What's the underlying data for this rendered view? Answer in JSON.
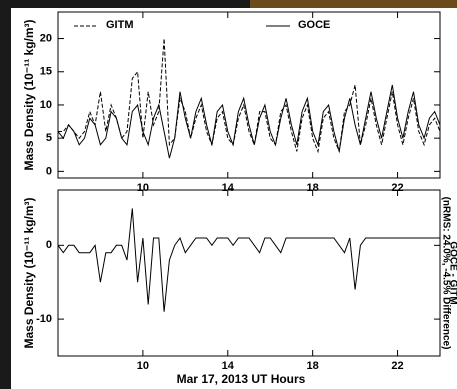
{
  "chart_data": [
    {
      "type": "line",
      "ylabel": "Mass Density (10⁻¹¹ kg/m³)",
      "x": [
        6,
        6.25,
        6.5,
        6.75,
        7,
        7.25,
        7.5,
        7.75,
        8,
        8.25,
        8.5,
        8.75,
        9,
        9.25,
        9.5,
        9.75,
        10,
        10.25,
        10.5,
        10.75,
        11,
        11.25,
        11.5,
        11.75,
        12,
        12.25,
        12.5,
        12.75,
        13,
        13.25,
        13.5,
        13.75,
        14,
        14.25,
        14.5,
        14.75,
        15,
        15.25,
        15.5,
        15.75,
        16,
        16.25,
        16.5,
        16.75,
        17,
        17.25,
        17.5,
        17.75,
        18,
        18.25,
        18.5,
        18.75,
        19,
        19.25,
        19.5,
        19.75,
        20,
        20.25,
        20.5,
        20.75,
        21,
        21.25,
        21.5,
        21.75,
        22,
        22.25,
        22.5,
        22.75,
        23,
        23.25,
        23.5,
        23.75,
        24
      ],
      "series": [
        {
          "name": "GITM",
          "color": "#000000",
          "line_style": "dashed",
          "values": [
            6,
            6,
            7,
            6,
            5,
            6,
            9,
            7,
            12,
            6,
            10,
            8,
            5,
            6,
            14,
            15,
            5,
            12,
            7,
            9,
            20,
            4,
            5,
            11,
            9,
            5,
            8,
            10,
            6,
            4,
            8,
            9,
            5,
            4,
            8,
            10,
            6,
            4,
            9,
            9,
            5,
            4,
            9,
            10,
            6,
            3,
            8,
            10,
            5,
            3,
            8,
            9,
            5,
            3,
            9,
            10,
            13,
            4,
            7,
            11,
            7,
            4,
            8,
            12,
            7,
            4,
            8,
            11,
            6,
            4,
            7,
            8,
            6
          ]
        },
        {
          "name": "GOCE",
          "color": "#000000",
          "line_style": "solid",
          "values": [
            6,
            5,
            7,
            6,
            4,
            5,
            8,
            7,
            4,
            5,
            9,
            8,
            5,
            4,
            9,
            10,
            6,
            4,
            8,
            10,
            6,
            2,
            5,
            12,
            8,
            5,
            9,
            11,
            7,
            4,
            9,
            10,
            6,
            4,
            9,
            11,
            7,
            4,
            8,
            10,
            6,
            4,
            8,
            11,
            7,
            4,
            9,
            11,
            6,
            4,
            9,
            10,
            6,
            3,
            8,
            11,
            7,
            4,
            8,
            12,
            8,
            5,
            9,
            13,
            8,
            5,
            9,
            12,
            7,
            5,
            8,
            9,
            7
          ]
        }
      ],
      "xlim": [
        6,
        24
      ],
      "xticks": [
        10,
        14,
        18,
        22
      ],
      "ylim": [
        -1,
        24
      ],
      "yticks": [
        0,
        5,
        10,
        15,
        20
      ]
    },
    {
      "type": "line",
      "ylabel": "Mass Density (10⁻¹¹ kg/m³)",
      "xlabel": "Mar 17, 2013 UT Hours",
      "right_labels": [
        "GOCE - GITM",
        "(nRMS: 24.0%, -4.5% Difference)"
      ],
      "x": [
        6,
        6.25,
        6.5,
        6.75,
        7,
        7.25,
        7.5,
        7.75,
        8,
        8.25,
        8.5,
        8.75,
        9,
        9.25,
        9.5,
        9.75,
        10,
        10.25,
        10.5,
        10.75,
        11,
        11.25,
        11.5,
        11.75,
        12,
        12.25,
        12.5,
        12.75,
        13,
        13.25,
        13.5,
        13.75,
        14,
        14.25,
        14.5,
        14.75,
        15,
        15.25,
        15.5,
        15.75,
        16,
        16.25,
        16.5,
        16.75,
        17,
        17.25,
        17.5,
        17.75,
        18,
        18.25,
        18.5,
        18.75,
        19,
        19.25,
        19.5,
        19.75,
        20,
        20.25,
        20.5,
        20.75,
        21,
        21.25,
        21.5,
        21.75,
        22,
        22.25,
        22.5,
        22.75,
        23,
        23.25,
        23.5,
        23.75,
        24
      ],
      "series": [
        {
          "color": "#000000",
          "line_style": "solid",
          "values": [
            0,
            -1,
            0,
            0,
            -1,
            -1,
            -1,
            0,
            -5,
            -1,
            -1,
            0,
            0,
            -2,
            5,
            -5,
            1,
            -8,
            1,
            1,
            -9,
            -2,
            0,
            1,
            -1,
            0,
            1,
            1,
            1,
            0,
            1,
            1,
            1,
            0,
            1,
            1,
            1,
            0,
            -1,
            1,
            1,
            0,
            -1,
            1,
            1,
            1,
            1,
            1,
            1,
            1,
            1,
            1,
            1,
            0,
            -1,
            1,
            -6,
            0,
            1,
            1,
            1,
            1,
            1,
            1,
            1,
            1,
            1,
            1,
            1,
            1,
            1,
            1,
            1
          ]
        }
      ],
      "xlim": [
        6,
        24
      ],
      "xticks": [
        10,
        14,
        18,
        22
      ],
      "ylim": [
        -15,
        7.5
      ],
      "yticks": [
        -10,
        0
      ]
    }
  ]
}
